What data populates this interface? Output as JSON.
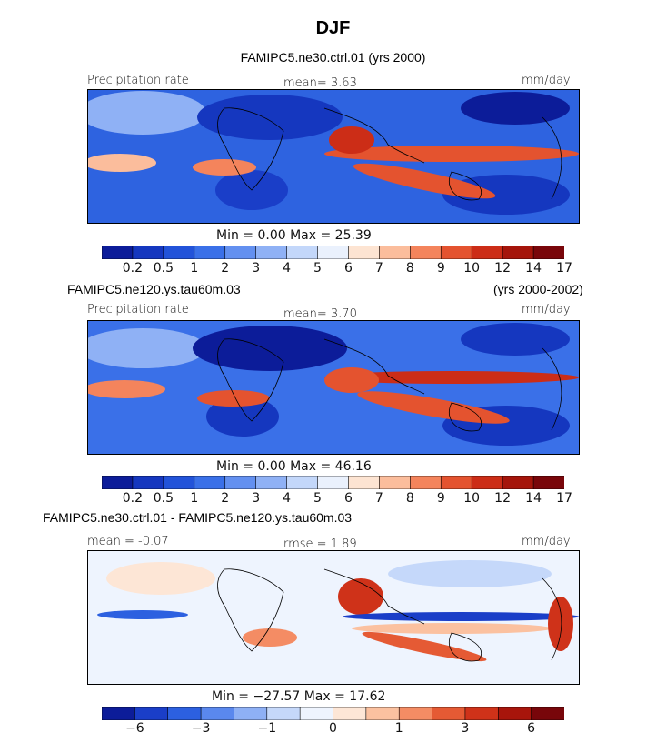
{
  "title": "DJF",
  "colors": {
    "abs_scale": [
      "#0c1c99",
      "#1537bf",
      "#2253d9",
      "#3a70e8",
      "#6390f0",
      "#8fb1f5",
      "#c3d7fa",
      "#eaf1fd",
      "#fde4d2",
      "#fbbd9c",
      "#f4845c",
      "#e4532f",
      "#cc2d17",
      "#a5150b",
      "#79060a"
    ],
    "diff_scale": [
      "#0c1c99",
      "#1a3ec8",
      "#2c60e0",
      "#5a88ee",
      "#8eb0f5",
      "#c5d8fa",
      "#eef4fe",
      "#fde6d6",
      "#fbc1a0",
      "#f48c64",
      "#e55a34",
      "#cf3219",
      "#a8150b",
      "#78060a"
    ]
  },
  "panels": [
    {
      "header": "FAMIPC5.ne30.ctrl.01 (yrs 2000)",
      "left_label": "Precipitation rate",
      "mid_label": "mean=   3.63",
      "right_label": "mm/day",
      "minmax": "Min =    0.00  Max =   25.39",
      "ticks": [
        "0.2",
        "0.5",
        "1",
        "2",
        "3",
        "4",
        "5",
        "6",
        "7",
        "8",
        "9",
        "10",
        "12",
        "14",
        "17"
      ]
    },
    {
      "header_left": "FAMIPC5.ne120.ys.tau60m.03",
      "header_right": "(yrs 2000-2002)",
      "left_label": "Precipitation rate",
      "mid_label": "mean=   3.70",
      "right_label": "mm/day",
      "minmax": "Min =    0.00  Max =   46.16",
      "ticks": [
        "0.2",
        "0.5",
        "1",
        "2",
        "3",
        "4",
        "5",
        "6",
        "7",
        "8",
        "9",
        "10",
        "12",
        "14",
        "17"
      ]
    },
    {
      "header_left": "FAMIPC5.ne30.ctrl.01 - FAMIPC5.ne120.ys.tau60m.03",
      "left_label": "mean =  -0.07",
      "mid_label": "rmse =   1.89",
      "right_label": "mm/day",
      "minmax": "Min = −27.57  Max =   17.62",
      "ticks": [
        "−6",
        "−3",
        "−1",
        "0",
        "1",
        "3",
        "6"
      ]
    }
  ],
  "chart_data": [
    {
      "type": "heatmap",
      "title": "FAMIPC5.ne30.ctrl.01 (yrs 2000)",
      "variable": "Precipitation rate",
      "units": "mm/day",
      "season": "DJF",
      "mean": 3.63,
      "min": 0.0,
      "max": 25.39,
      "contour_levels": [
        0.2,
        0.5,
        1,
        2,
        3,
        4,
        5,
        6,
        7,
        8,
        9,
        10,
        12,
        14,
        17
      ]
    },
    {
      "type": "heatmap",
      "title": "FAMIPC5.ne120.ys.tau60m.03 (yrs 2000-2002)",
      "variable": "Precipitation rate",
      "units": "mm/day",
      "season": "DJF",
      "mean": 3.7,
      "min": 0.0,
      "max": 46.16,
      "contour_levels": [
        0.2,
        0.5,
        1,
        2,
        3,
        4,
        5,
        6,
        7,
        8,
        9,
        10,
        12,
        14,
        17
      ]
    },
    {
      "type": "heatmap",
      "title": "FAMIPC5.ne30.ctrl.01 - FAMIPC5.ne120.ys.tau60m.03",
      "units": "mm/day",
      "season": "DJF",
      "mean": -0.07,
      "rmse": 1.89,
      "min": -27.57,
      "max": 17.62,
      "contour_levels": [
        -6,
        -3,
        -1,
        0,
        1,
        3,
        6
      ]
    }
  ]
}
